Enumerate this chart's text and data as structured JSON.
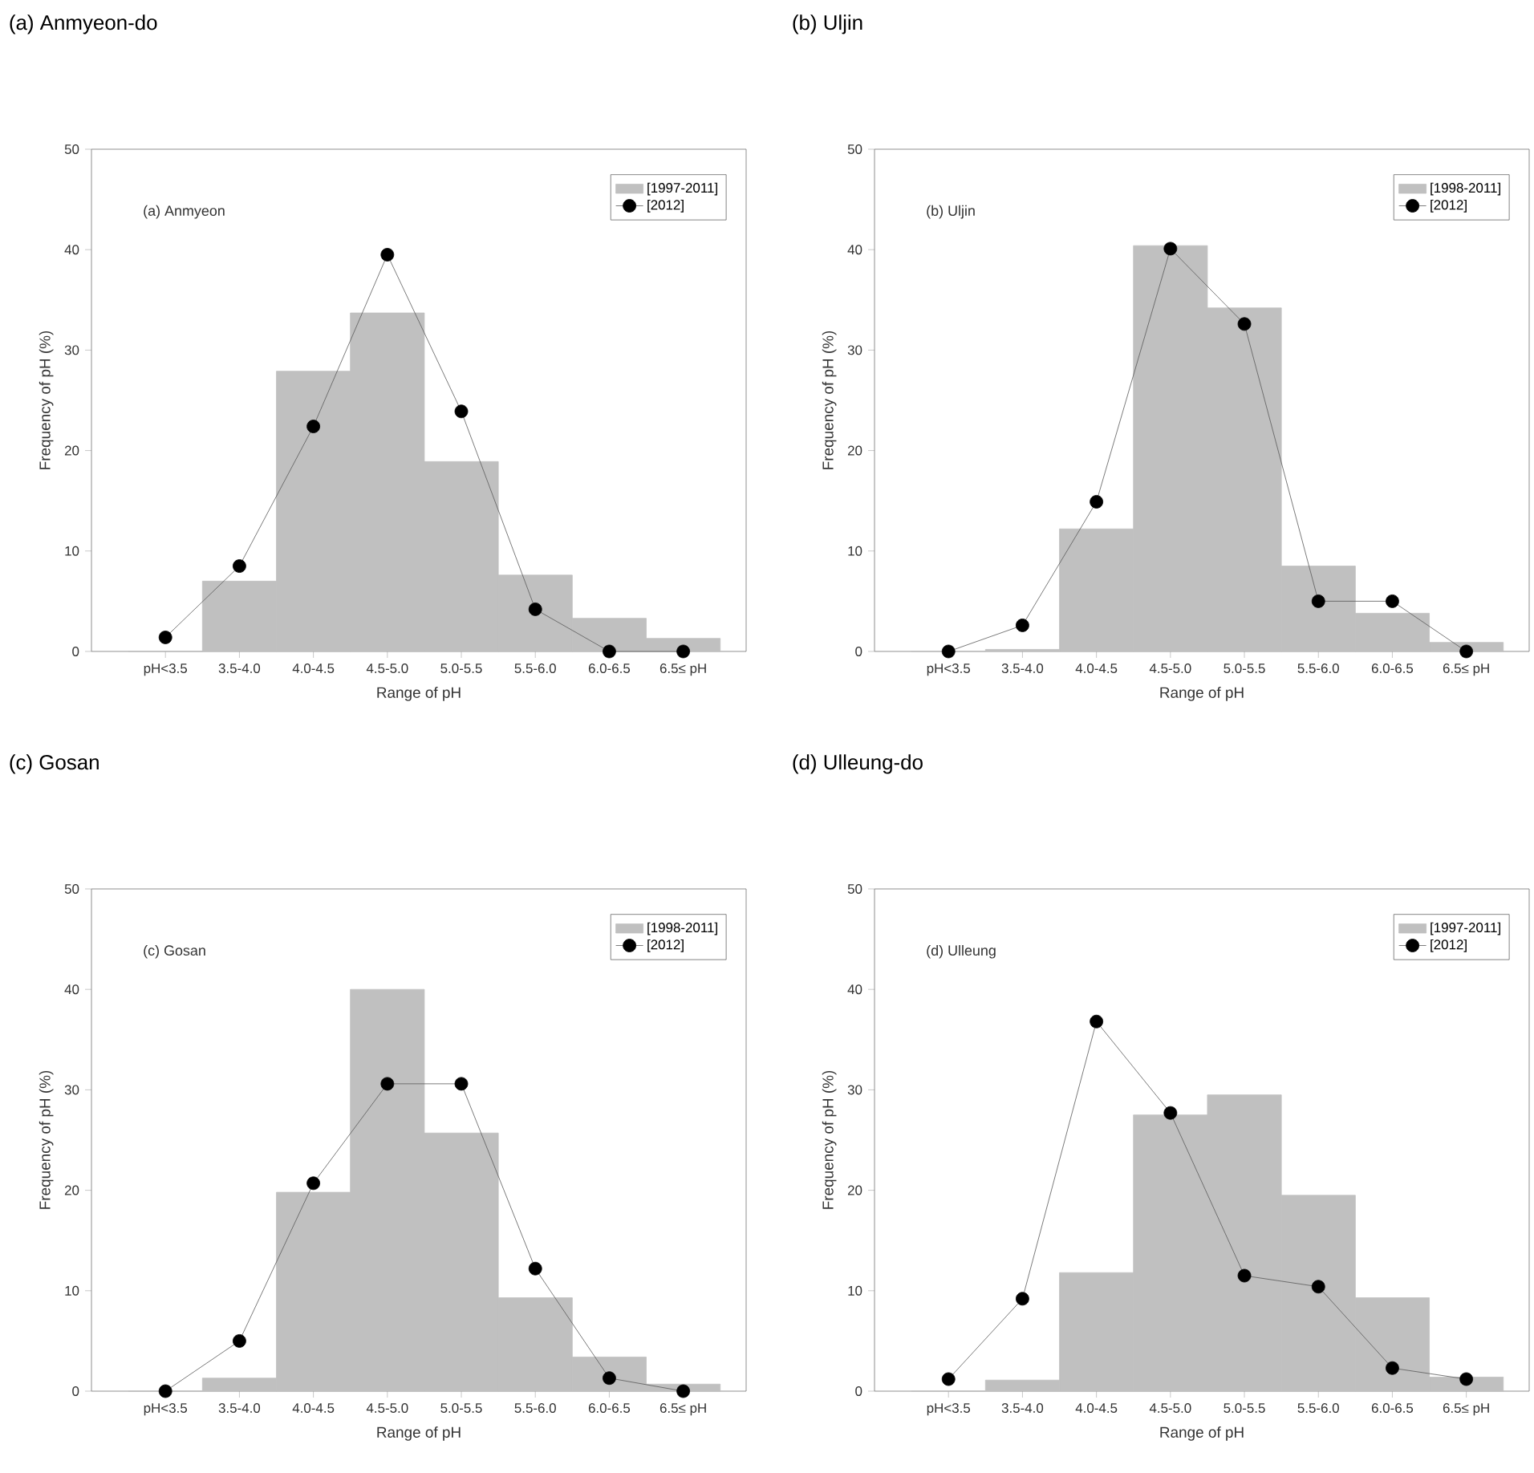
{
  "chart_data": [
    {
      "type": "bar",
      "title": "(a) Anmyeon-do",
      "xlabel": "Range of pH",
      "ylabel": "Frequency of pH (%)",
      "annotations": [
        "(a) Anmyeon"
      ],
      "categories": [
        "pH<3.5",
        "3.5-4.0",
        "4.0-4.5",
        "4.5-5.0",
        "5.0-5.5",
        "5.5-6.0",
        "6.0-6.5",
        "6.5≤ pH"
      ],
      "ylim": [
        0,
        50
      ],
      "yticks": [
        0,
        10,
        20,
        30,
        40,
        50
      ],
      "legend": "top right",
      "marker": "circle",
      "series": [
        {
          "name": "[1997-2011]",
          "color": "#c0c0c0",
          "values": [
            0,
            7.0,
            27.9,
            33.7,
            18.9,
            7.6,
            3.3,
            1.3
          ]
        },
        {
          "name": "[2012]",
          "type": "line",
          "color": "#000000",
          "values": [
            1.4,
            8.5,
            22.4,
            39.5,
            23.9,
            4.2,
            0,
            0
          ]
        }
      ]
    },
    {
      "type": "bar",
      "title": "(b) Uljin",
      "xlabel": "Range of pH",
      "ylabel": "Frequency of pH (%)",
      "annotations": [
        "(b) Uljin"
      ],
      "categories": [
        "pH<3.5",
        "3.5-4.0",
        "4.0-4.5",
        "4.5-5.0",
        "5.0-5.5",
        "5.5-6.0",
        "6.0-6.5",
        "6.5≤ pH"
      ],
      "ylim": [
        0,
        50
      ],
      "yticks": [
        0,
        10,
        20,
        30,
        40,
        50
      ],
      "legend": "top right",
      "marker": "circle",
      "series": [
        {
          "name": "[1998-2011]",
          "color": "#c0c0c0",
          "values": [
            0,
            0.2,
            12.2,
            40.4,
            34.2,
            8.5,
            3.8,
            0.9
          ]
        },
        {
          "name": "[2012]",
          "type": "line",
          "color": "#000000",
          "values": [
            0,
            2.6,
            14.9,
            40.1,
            32.6,
            5.0,
            5.0,
            0
          ]
        }
      ]
    },
    {
      "type": "bar",
      "title": "(c) Gosan",
      "xlabel": "Range of pH",
      "ylabel": "Frequency of pH (%)",
      "annotations": [
        "(c) Gosan"
      ],
      "categories": [
        "pH<3.5",
        "3.5-4.0",
        "4.0-4.5",
        "4.5-5.0",
        "5.0-5.5",
        "5.5-6.0",
        "6.0-6.5",
        "6.5≤ pH"
      ],
      "ylim": [
        0,
        50
      ],
      "yticks": [
        0,
        10,
        20,
        30,
        40,
        50
      ],
      "legend": "top right",
      "marker": "circle",
      "series": [
        {
          "name": "[1998-2011]",
          "color": "#c0c0c0",
          "values": [
            0,
            1.3,
            19.8,
            40.0,
            25.7,
            9.3,
            3.4,
            0.7
          ]
        },
        {
          "name": "[2012]",
          "type": "line",
          "color": "#000000",
          "values": [
            0,
            5.0,
            20.7,
            30.6,
            30.6,
            12.2,
            1.3,
            0
          ]
        }
      ]
    },
    {
      "type": "bar",
      "title": "(d) Ulleung-do",
      "xlabel": "Range of pH",
      "ylabel": "Frequency of pH (%)",
      "annotations": [
        "(d) Ulleung"
      ],
      "categories": [
        "pH<3.5",
        "3.5-4.0",
        "4.0-4.5",
        "4.5-5.0",
        "5.0-5.5",
        "5.5-6.0",
        "6.0-6.5",
        "6.5≤ pH"
      ],
      "ylim": [
        0,
        50
      ],
      "yticks": [
        0,
        10,
        20,
        30,
        40,
        50
      ],
      "legend": "top right",
      "marker": "circle",
      "series": [
        {
          "name": "[1997-2011]",
          "color": "#c0c0c0",
          "values": [
            0,
            1.1,
            11.8,
            27.5,
            29.5,
            19.5,
            9.3,
            1.4
          ]
        },
        {
          "name": "[2012]",
          "type": "line",
          "color": "#000000",
          "values": [
            1.2,
            9.2,
            36.8,
            27.7,
            11.5,
            10.4,
            2.3,
            1.2
          ]
        }
      ]
    }
  ]
}
